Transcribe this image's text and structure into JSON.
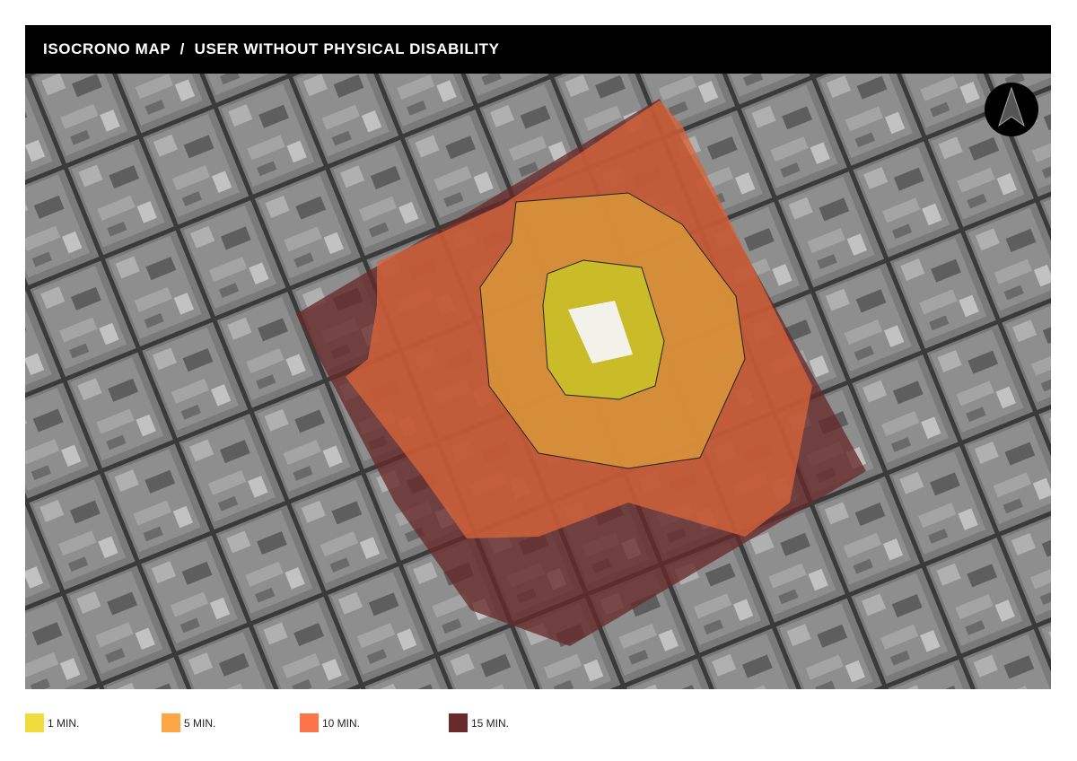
{
  "header": {
    "title": "ISOCRONO MAP  /  USER WITHOUT PHYSICAL DISABILITY"
  },
  "map": {
    "north_arrow_icon": "north-arrow-icon",
    "basemap": "grayscale satellite"
  },
  "legend": {
    "items": [
      {
        "label": "1 MIN.",
        "color": "#f0dc3c"
      },
      {
        "label": "5 MIN.",
        "color": "#fca646"
      },
      {
        "label": "10 MIN.",
        "color": "#fd734a"
      },
      {
        "label": "15 MIN.",
        "color": "#682a2a"
      }
    ]
  }
}
